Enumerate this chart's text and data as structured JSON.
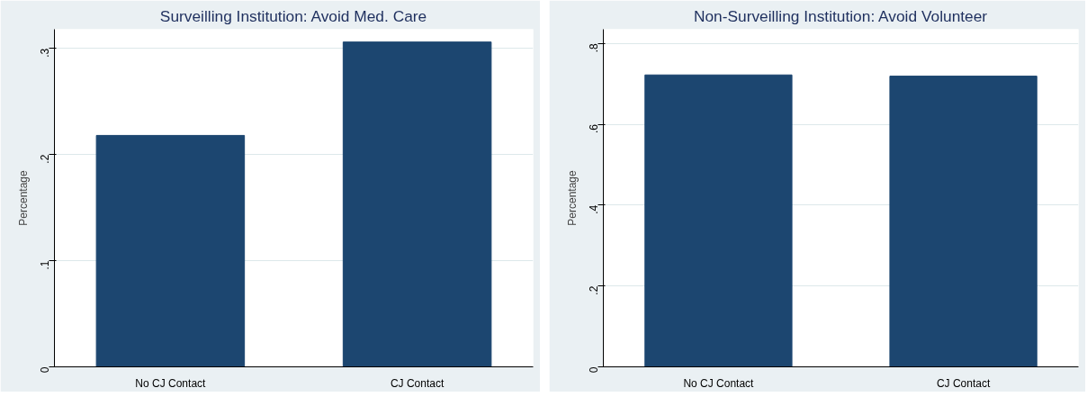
{
  "chart_data": [
    {
      "type": "bar",
      "title": "Surveilling Institution: Avoid Med. Care",
      "ylabel": "Percentage",
      "categories": [
        "No CJ Contact",
        "CJ Contact"
      ],
      "values": [
        0.218,
        0.306
      ],
      "color": "#1c4670",
      "ylim": [
        0,
        0.318
      ],
      "yticks": [
        0,
        {
          "value": 0.1,
          "label": ".1"
        },
        {
          "value": 0.2,
          "label": ".2"
        },
        {
          "value": 0.3,
          "label": ".3"
        }
      ],
      "grid": "y"
    },
    {
      "type": "bar",
      "title": "Non-Surveilling Institution: Avoid Volunteer",
      "ylabel": "Percentage",
      "categories": [
        "No CJ Contact",
        "CJ Contact"
      ],
      "values": [
        0.722,
        0.719
      ],
      "color": "#1c4670",
      "ylim": [
        0,
        0.835
      ],
      "yticks": [
        0,
        {
          "value": 0.2,
          "label": ".2"
        },
        {
          "value": 0.4,
          "label": ".4"
        },
        {
          "value": 0.6,
          "label": ".6"
        },
        {
          "value": 0.8,
          "label": ".8"
        }
      ],
      "grid": "y"
    }
  ]
}
